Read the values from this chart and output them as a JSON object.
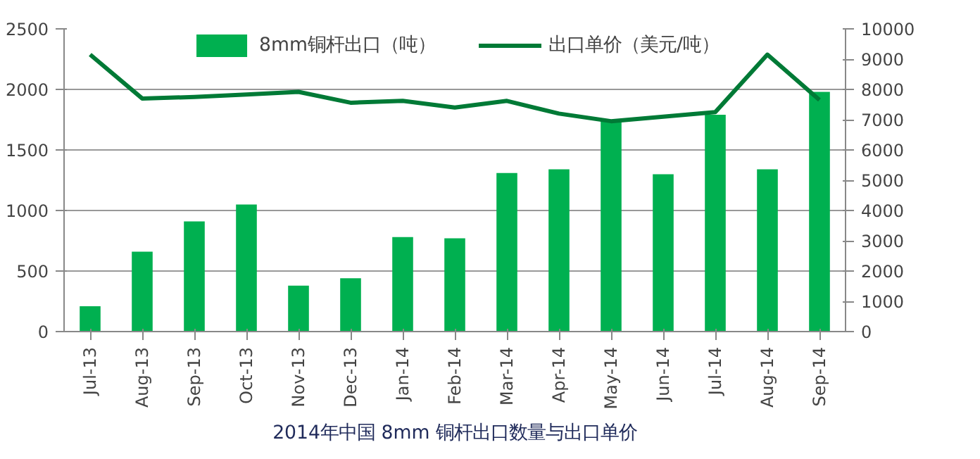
{
  "chart_data": {
    "type": "bar",
    "categories": [
      "Jul-13",
      "Aug-13",
      "Sep-13",
      "Oct-13",
      "Nov-13",
      "Dec-13",
      "Jan-14",
      "Feb-14",
      "Mar-14",
      "Apr-14",
      "May-14",
      "Jun-14",
      "Jul-14",
      "Aug-14",
      "Sep-14"
    ],
    "series": [
      {
        "name": "8mm铜杆出口（吨）",
        "color": "#00b050",
        "values": [
          210,
          660,
          910,
          1050,
          380,
          440,
          780,
          770,
          1310,
          1340,
          1740,
          1300,
          1790,
          1340,
          1980
        ]
      },
      {
        "name": "出口单价（美元/吨）",
        "type": "line",
        "axis": "y2",
        "color": "#007a36",
        "values": [
          9150,
          7700,
          7750,
          7830,
          7920,
          7560,
          7620,
          7400,
          7620,
          7200,
          6950,
          7100,
          7250,
          9150,
          7650
        ]
      }
    ],
    "ylim": [
      0,
      2500
    ],
    "yticks": [
      0,
      500,
      1000,
      1500,
      2000,
      2500
    ],
    "y2lim": [
      0,
      10000
    ],
    "y2ticks": [
      0,
      1000,
      2000,
      3000,
      4000,
      5000,
      6000,
      7000,
      8000,
      9000,
      10000
    ],
    "grid": "y",
    "legend": "top",
    "marker": "none",
    "line_style": "solid",
    "annotations": [
      "2014年中国 8mm 铜杆出口数量与出口单价"
    ]
  }
}
